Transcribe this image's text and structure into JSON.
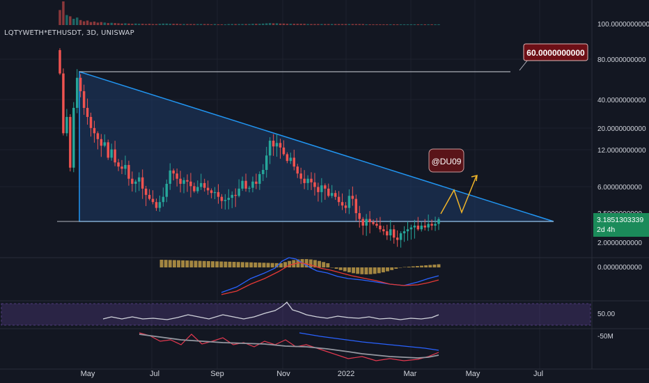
{
  "header": {
    "symbol": "LQTYWETH*ETHUSDT",
    "interval": "3D",
    "exchange": "UNISWAP",
    "title": "LQTYWETH*ETHUSDT, 3D, UNISWAP"
  },
  "annotations": {
    "target_label": "60.0000000000",
    "watermark_label": "@DU09"
  },
  "price_axis": {
    "labels": [
      "100.0000000000",
      "80.0000000000",
      "40.0000000000",
      "20.0000000000",
      "12.0000000000",
      "6.0000000000",
      "3.5000000000",
      "2.0000000000"
    ],
    "last_price": "3.1851303339",
    "countdown": "2d 4h"
  },
  "macd_axis": {
    "labels": [
      "0.0000000000"
    ]
  },
  "rsi_axis": {
    "labels": [
      "50.00"
    ]
  },
  "volume_ma_axis": {
    "labels": [
      "-50M"
    ]
  },
  "time_axis": {
    "labels": [
      "May",
      "Jul",
      "Sep",
      "Nov",
      "2022",
      "Mar",
      "May",
      "Jul"
    ]
  },
  "colors": {
    "background": "#131722",
    "up": "#26a69a",
    "down": "#ef5350",
    "triangle_line": "#2196f3",
    "triangle_fill": "#1e3a66",
    "projection": "#f0b429",
    "rsi_band": "#7e57c2",
    "macd_line": "#2962ff",
    "signal_line": "#e53935",
    "hist": "#c8a24a"
  },
  "chart_data": {
    "type": "candlestick",
    "scale": "log",
    "title": "LQTYWETH*ETHUSDT, 3D, UNISWAP",
    "x_axis_ticks": [
      "May",
      "Jul",
      "Sep",
      "Nov",
      "2022",
      "Mar",
      "May",
      "Jul"
    ],
    "y_axis_ticks": [
      100,
      80,
      40,
      20,
      12,
      6,
      3.5,
      2
    ],
    "last_price": 3.1851303339,
    "close_series": [
      60,
      18,
      25,
      9,
      30,
      55,
      42,
      30,
      25,
      20,
      18,
      16,
      14,
      15,
      11,
      13,
      10,
      9.2,
      8.8,
      9.5,
      7.2,
      6.5,
      6.8,
      7.4,
      5.9,
      5.2,
      4.8,
      4.5,
      4.0,
      4.5,
      5.0,
      6.5,
      8.5,
      8.0,
      7.2,
      6.5,
      7.0,
      6.8,
      6.2,
      5.6,
      6.1,
      6.6,
      6.0,
      5.7,
      5.4,
      5.5,
      5.0,
      4.6,
      4.7,
      4.9,
      5.2,
      5.1,
      5.9,
      6.9,
      5.9,
      6.0,
      6.8,
      6.5,
      7.9,
      8.6,
      11.5,
      15.5,
      13.8,
      14.8,
      13.5,
      11.8,
      10.3,
      11.0,
      9.2,
      8.0,
      7.2,
      6.6,
      7.2,
      6.7,
      6.1,
      5.5,
      6.3,
      5.9,
      5.1,
      5.4,
      5.0,
      4.5,
      4.2,
      4.0,
      5.1,
      4.8,
      3.6,
      3.2,
      2.8,
      3.2,
      3.0,
      2.9,
      2.8,
      2.6,
      2.5,
      2.3,
      2.6,
      2.2,
      2.1,
      2.4,
      2.5,
      2.6,
      2.7,
      2.8,
      2.6,
      2.8,
      2.7,
      2.9,
      2.8,
      2.9,
      3.19
    ],
    "volume_series": [
      60,
      95,
      40,
      35,
      25,
      30,
      20,
      15,
      18,
      12,
      14,
      10,
      12,
      10,
      8,
      9,
      8,
      7,
      6,
      7,
      6,
      5,
      6,
      5,
      5,
      4,
      5,
      4,
      4,
      5,
      6,
      6,
      5,
      5,
      5,
      4,
      4,
      4,
      4,
      4,
      4,
      4,
      4,
      4,
      3,
      4,
      3,
      3,
      3,
      4,
      4,
      4,
      4,
      4,
      4,
      4,
      5,
      5,
      5,
      6,
      7,
      8,
      7,
      7,
      6,
      6,
      5,
      5,
      5,
      5,
      5,
      5,
      4,
      4,
      4,
      4,
      4,
      4,
      4,
      4,
      4,
      4,
      4,
      4,
      4,
      4,
      4,
      4,
      4,
      3,
      3,
      3,
      3,
      3,
      3,
      3,
      3,
      3,
      3,
      3,
      3,
      3,
      3,
      3,
      3,
      3,
      3,
      3,
      3,
      3,
      3
    ],
    "triangle": {
      "apex_price": 60,
      "base_price": 3.4
    },
    "target_level": 60,
    "indicators": [
      "MACD",
      "RSI",
      "Volume MA"
    ]
  }
}
